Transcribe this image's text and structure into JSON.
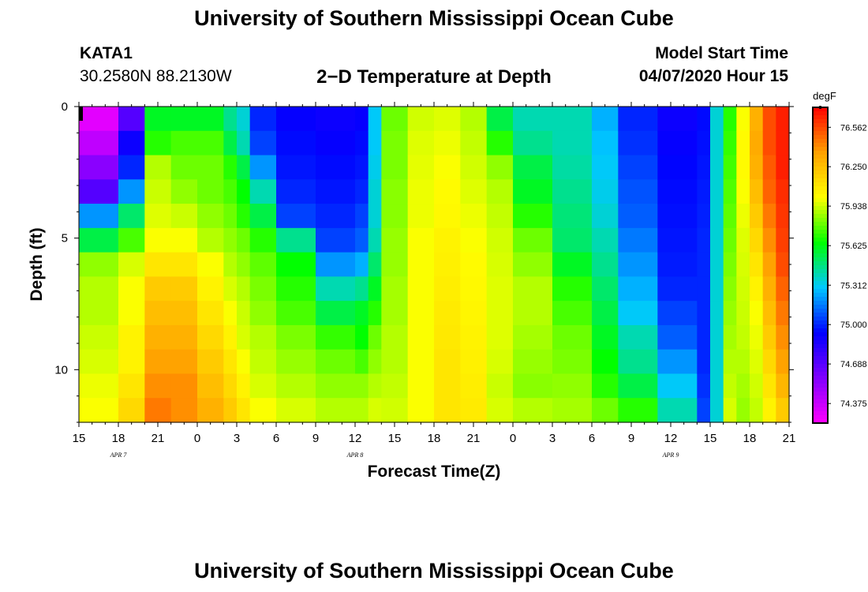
{
  "page": {
    "title_top": "University of Southern Mississippi Ocean Cube",
    "title_bottom": "University of Southern Mississippi Ocean Cube",
    "station": "KATA1",
    "coords": "30.2580N 88.2130W",
    "plot_title": "2−D Temperature at Depth",
    "model_label": "Model Start Time",
    "model_time": "04/07/2020 Hour 15"
  },
  "chart_data": {
    "type": "heatmap",
    "title": "2−D Temperature at Depth",
    "xlabel": "Forecast Time(Z)",
    "ylabel": "Depth (ft)",
    "x_range_hours": [
      0,
      54
    ],
    "y_range_ft": [
      0,
      12
    ],
    "x_ticks": [
      "15",
      "18",
      "21",
      "0",
      "3",
      "6",
      "9",
      "12",
      "15",
      "18",
      "21",
      "0",
      "3",
      "6",
      "9",
      "12",
      "15",
      "18",
      "21"
    ],
    "y_ticks": [
      0,
      5,
      10
    ],
    "date_labels": [
      {
        "hour": 3,
        "label": "APR 7"
      },
      {
        "hour": 21,
        "label": "APR 8"
      },
      {
        "hour": 45,
        "label": "APR 9"
      }
    ],
    "colorbar": {
      "unit": "degF",
      "min": 74.22,
      "max": 76.72,
      "ticks": [
        "76.562",
        "76.250",
        "75.938",
        "75.625",
        "75.312",
        "75.000",
        "74.688",
        "74.375"
      ],
      "colors": [
        "#ff00ff",
        "#8000ff",
        "#0000ff",
        "#00c8ff",
        "#00ff00",
        "#ffff00",
        "#ffa000",
        "#ff0000"
      ]
    },
    "series": [
      {
        "hour": 0,
        "values": [
          74.3,
          74.4,
          74.55,
          74.7,
          75.2,
          75.55,
          75.85,
          75.9,
          75.9,
          75.93,
          75.95,
          75.98,
          76.0
        ]
      },
      {
        "hour": 3,
        "values": [
          74.7,
          74.9,
          75.0,
          75.2,
          75.5,
          75.75,
          75.95,
          76.0,
          76.0,
          76.05,
          76.05,
          76.1,
          76.15
        ]
      },
      {
        "hour": 5,
        "values": [
          75.6,
          75.7,
          75.9,
          75.93,
          75.96,
          76.0,
          76.1,
          76.2,
          76.25,
          76.3,
          76.35,
          76.4,
          76.45
        ]
      },
      {
        "hour": 7,
        "values": [
          75.6,
          75.75,
          75.8,
          75.85,
          75.93,
          76.0,
          76.1,
          76.2,
          76.25,
          76.3,
          76.35,
          76.4,
          76.4
        ]
      },
      {
        "hour": 9,
        "values": [
          75.6,
          75.75,
          75.8,
          75.8,
          75.85,
          75.9,
          76.0,
          76.05,
          76.1,
          76.15,
          76.2,
          76.25,
          76.3
        ]
      },
      {
        "hour": 11,
        "values": [
          75.45,
          75.55,
          75.7,
          75.75,
          75.8,
          75.85,
          75.9,
          75.95,
          76.0,
          76.05,
          76.1,
          76.15,
          76.2
        ]
      },
      {
        "hour": 12,
        "values": [
          75.35,
          75.4,
          75.55,
          75.65,
          75.7,
          75.8,
          75.85,
          75.9,
          75.93,
          75.95,
          76.0,
          76.05,
          76.1
        ]
      },
      {
        "hour": 13,
        "values": [
          75.0,
          75.05,
          75.2,
          75.4,
          75.55,
          75.7,
          75.78,
          75.82,
          75.85,
          75.9,
          75.92,
          75.95,
          76.0
        ]
      },
      {
        "hour": 15,
        "values": [
          74.92,
          74.95,
          74.97,
          75.0,
          75.05,
          75.45,
          75.65,
          75.7,
          75.75,
          75.82,
          75.86,
          75.9,
          75.95
        ]
      },
      {
        "hour": 18,
        "values": [
          74.9,
          74.92,
          74.95,
          74.97,
          75.0,
          75.05,
          75.2,
          75.4,
          75.55,
          75.72,
          75.8,
          75.85,
          75.9
        ]
      },
      {
        "hour": 21,
        "values": [
          74.92,
          74.95,
          74.97,
          75.0,
          75.05,
          75.1,
          75.25,
          75.45,
          75.6,
          75.65,
          75.75,
          75.85,
          75.9
        ]
      },
      {
        "hour": 22,
        "values": [
          75.3,
          75.3,
          75.32,
          75.35,
          75.35,
          75.4,
          75.5,
          75.6,
          75.7,
          75.8,
          75.85,
          75.9,
          75.95
        ]
      },
      {
        "hour": 23,
        "values": [
          75.8,
          75.82,
          75.82,
          75.84,
          75.84,
          75.86,
          75.86,
          75.88,
          75.88,
          75.9,
          75.9,
          75.92,
          75.94
        ]
      },
      {
        "hour": 25,
        "values": [
          75.94,
          75.96,
          75.97,
          75.98,
          75.98,
          76.0,
          76.0,
          76.0,
          76.0,
          76.0,
          76.0,
          76.0,
          76.0
        ]
      },
      {
        "hour": 27,
        "values": [
          75.96,
          75.98,
          76.0,
          76.02,
          76.03,
          76.05,
          76.06,
          76.07,
          76.08,
          76.09,
          76.1,
          76.1,
          76.1
        ]
      },
      {
        "hour": 29,
        "values": [
          75.9,
          75.92,
          75.94,
          75.96,
          75.98,
          76.0,
          76.02,
          76.03,
          76.04,
          76.05,
          76.06,
          76.07,
          76.08
        ]
      },
      {
        "hour": 31,
        "values": [
          75.55,
          75.7,
          75.85,
          75.9,
          75.92,
          75.94,
          75.95,
          75.96,
          75.96,
          75.96,
          75.95,
          75.93,
          75.95
        ]
      },
      {
        "hour": 33,
        "values": [
          75.4,
          75.45,
          75.55,
          75.6,
          75.7,
          75.8,
          75.85,
          75.9,
          75.9,
          75.88,
          75.86,
          75.84,
          75.9
        ]
      },
      {
        "hour": 36,
        "values": [
          75.4,
          75.4,
          75.42,
          75.45,
          75.48,
          75.5,
          75.6,
          75.7,
          75.75,
          75.8,
          75.82,
          75.85,
          75.88
        ]
      },
      {
        "hour": 39,
        "values": [
          75.25,
          75.28,
          75.3,
          75.32,
          75.35,
          75.4,
          75.45,
          75.5,
          75.55,
          75.6,
          75.65,
          75.7,
          75.8
        ]
      },
      {
        "hour": 41,
        "values": [
          75.0,
          75.02,
          75.05,
          75.08,
          75.1,
          75.15,
          75.2,
          75.25,
          75.3,
          75.4,
          75.45,
          75.55,
          75.7
        ]
      },
      {
        "hour": 44,
        "values": [
          74.9,
          74.92,
          74.94,
          74.95,
          74.96,
          74.97,
          74.98,
          75.0,
          75.05,
          75.1,
          75.2,
          75.3,
          75.4
        ]
      },
      {
        "hour": 47,
        "values": [
          74.95,
          74.96,
          74.97,
          74.98,
          74.99,
          75.0,
          75.0,
          75.0,
          75.0,
          75.0,
          75.0,
          75.02,
          75.05
        ]
      },
      {
        "hour": 48,
        "values": [
          75.35,
          75.35,
          75.35,
          75.35,
          75.35,
          75.35,
          75.35,
          75.35,
          75.35,
          75.35,
          75.35,
          75.35,
          75.35
        ]
      },
      {
        "hour": 49,
        "values": [
          75.7,
          75.72,
          75.74,
          75.76,
          75.78,
          75.8,
          75.82,
          75.84,
          75.86,
          75.88,
          75.9,
          75.92,
          75.95
        ]
      },
      {
        "hour": 50,
        "values": [
          76.0,
          76.02,
          76.02,
          76.0,
          75.98,
          75.96,
          75.95,
          75.94,
          75.93,
          75.92,
          75.9,
          75.88,
          75.86
        ]
      },
      {
        "hour": 51,
        "values": [
          76.3,
          76.32,
          76.3,
          76.25,
          76.2,
          76.15,
          76.1,
          76.05,
          76.0,
          75.98,
          75.96,
          75.94,
          75.92
        ]
      },
      {
        "hour": 52,
        "values": [
          76.55,
          76.55,
          76.52,
          76.5,
          76.45,
          76.4,
          76.35,
          76.3,
          76.25,
          76.2,
          76.15,
          76.1,
          76.05
        ]
      },
      {
        "hour": 53,
        "values": [
          76.65,
          76.65,
          76.65,
          76.62,
          76.6,
          76.58,
          76.55,
          76.5,
          76.45,
          76.4,
          76.35,
          76.28,
          76.2
        ]
      },
      {
        "hour": 54,
        "values": [
          76.7,
          76.7,
          76.7,
          76.68,
          76.66,
          76.64,
          76.62,
          76.6,
          76.58,
          76.55,
          76.5,
          76.45,
          76.4
        ]
      }
    ]
  }
}
